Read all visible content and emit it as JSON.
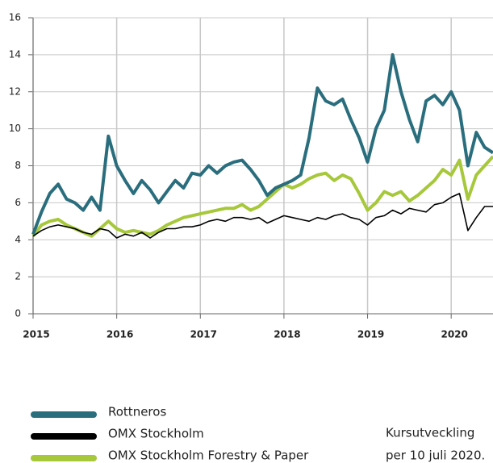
{
  "chart_data": {
    "type": "line",
    "x": [
      2015.0,
      2015.1,
      2015.2,
      2015.3,
      2015.4,
      2015.5,
      2015.6,
      2015.7,
      2015.8,
      2015.9,
      2016.0,
      2016.1,
      2016.2,
      2016.3,
      2016.4,
      2016.5,
      2016.6,
      2016.7,
      2016.8,
      2016.9,
      2017.0,
      2017.1,
      2017.2,
      2017.3,
      2017.4,
      2017.5,
      2017.6,
      2017.7,
      2017.8,
      2017.9,
      2018.0,
      2018.1,
      2018.2,
      2018.3,
      2018.4,
      2018.5,
      2018.6,
      2018.7,
      2018.8,
      2018.9,
      2019.0,
      2019.1,
      2019.2,
      2019.3,
      2019.4,
      2019.5,
      2019.6,
      2019.7,
      2019.8,
      2019.9,
      2020.0,
      2020.1,
      2020.2,
      2020.3,
      2020.4,
      2020.5
    ],
    "series": [
      {
        "name": "Rottneros",
        "color": "#2a6e7e",
        "values": [
          4.3,
          5.5,
          6.5,
          7.0,
          6.2,
          6.0,
          5.6,
          6.3,
          5.6,
          9.6,
          8.0,
          7.2,
          6.5,
          7.2,
          6.7,
          6.0,
          6.6,
          7.2,
          6.8,
          7.6,
          7.5,
          8.0,
          7.6,
          8.0,
          8.2,
          8.3,
          7.8,
          7.2,
          6.4,
          6.8,
          7.0,
          7.2,
          7.5,
          9.5,
          12.2,
          11.5,
          11.3,
          11.6,
          10.5,
          9.5,
          8.2,
          10.0,
          11.0,
          14.0,
          12.0,
          10.5,
          9.3,
          11.5,
          11.8,
          11.3,
          12.0,
          11.0,
          8.0,
          9.8,
          9.0,
          8.7
        ]
      },
      {
        "name": "OMX Stockholm",
        "color": "#000000",
        "values": [
          4.2,
          4.5,
          4.7,
          4.8,
          4.7,
          4.6,
          4.4,
          4.3,
          4.6,
          4.5,
          4.1,
          4.3,
          4.2,
          4.4,
          4.1,
          4.4,
          4.6,
          4.6,
          4.7,
          4.7,
          4.8,
          5.0,
          5.1,
          5.0,
          5.2,
          5.2,
          5.1,
          5.2,
          4.9,
          5.1,
          5.3,
          5.2,
          5.1,
          5.0,
          5.2,
          5.1,
          5.3,
          5.4,
          5.2,
          5.1,
          4.8,
          5.2,
          5.3,
          5.6,
          5.4,
          5.7,
          5.6,
          5.5,
          5.9,
          6.0,
          6.3,
          6.5,
          4.5,
          5.2,
          5.8,
          5.8
        ]
      },
      {
        "name": "OMX Stockholm Forestry & Paper",
        "color": "#a6c83a",
        "values": [
          4.2,
          4.8,
          5.0,
          5.1,
          4.8,
          4.6,
          4.4,
          4.2,
          4.6,
          5.0,
          4.6,
          4.4,
          4.5,
          4.4,
          4.3,
          4.5,
          4.8,
          5.0,
          5.2,
          5.3,
          5.4,
          5.5,
          5.6,
          5.7,
          5.7,
          5.9,
          5.6,
          5.8,
          6.2,
          6.6,
          7.0,
          6.8,
          7.0,
          7.3,
          7.5,
          7.6,
          7.2,
          7.5,
          7.3,
          6.5,
          5.6,
          6.0,
          6.6,
          6.4,
          6.6,
          6.1,
          6.4,
          6.8,
          7.2,
          7.8,
          7.5,
          8.3,
          6.2,
          7.5,
          8.0,
          8.5
        ]
      }
    ],
    "xlim": [
      2015,
      2020.5
    ],
    "xticks": [
      2015,
      2016,
      2017,
      2018,
      2019,
      2020
    ],
    "ylim": [
      0,
      16
    ],
    "yticks": [
      0,
      2,
      4,
      6,
      8,
      10,
      12,
      14,
      16
    ],
    "grid": true,
    "annotation": [
      "Kursutveckling",
      "per 10 juli 2020."
    ]
  }
}
